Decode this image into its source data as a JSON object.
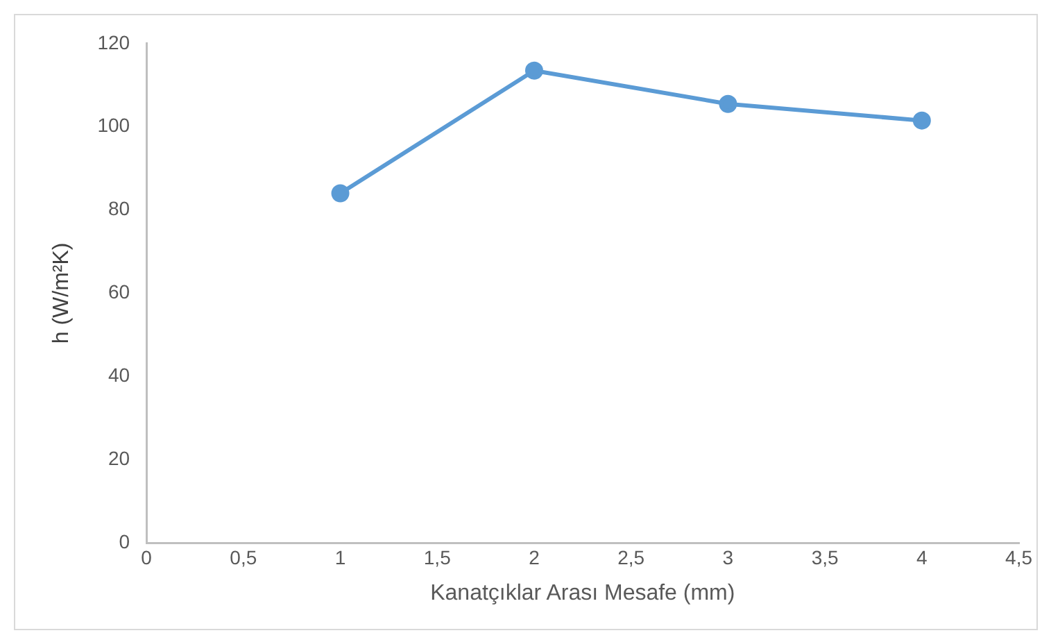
{
  "chart_data": {
    "type": "line",
    "xlabel": "Kanatçıklar Arası Mesafe (mm)",
    "ylabel": "h (W/m²K)",
    "x": [
      1,
      2,
      3,
      4
    ],
    "series": [
      {
        "color": "#5b9bd5",
        "values": [
          84,
          113.5,
          105.5,
          101.5
        ]
      }
    ],
    "xlim": [
      0,
      4.5
    ],
    "xticks": [
      0,
      {
        "value": 0.5,
        "label": "0,5"
      },
      1,
      {
        "value": 1.5,
        "label": "1,5"
      },
      2,
      {
        "value": 2.5,
        "label": "2,5"
      },
      3,
      {
        "value": 3.5,
        "label": "3,5"
      },
      4,
      {
        "value": 4.5,
        "label": "4,5"
      }
    ],
    "ylim": [
      0,
      120
    ],
    "yticks": [
      0,
      20,
      40,
      60,
      80,
      100,
      120
    ],
    "grid": false,
    "legend": false,
    "marker": "circle",
    "line_style": "solid"
  }
}
